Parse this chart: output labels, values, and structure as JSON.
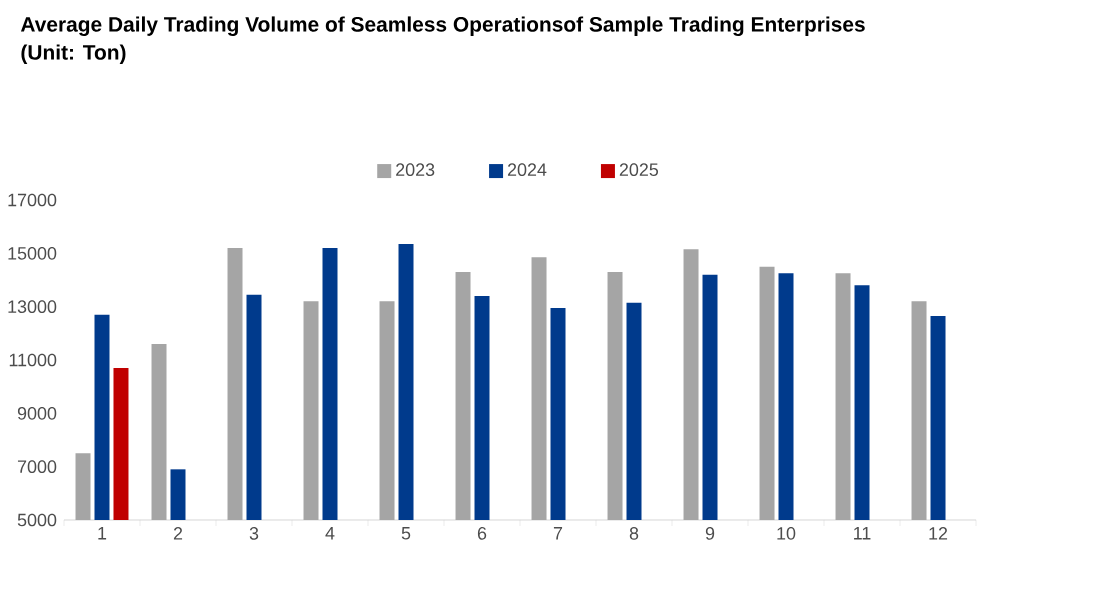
{
  "chart_data": {
    "type": "bar",
    "title": "Average Daily Trading Volume of Seamless Operationsof Sample Trading Enterprises",
    "subtitle": "(Unit: Ton)",
    "categories": [
      "1",
      "2",
      "3",
      "4",
      "5",
      "6",
      "7",
      "8",
      "9",
      "10",
      "11",
      "12"
    ],
    "series": [
      {
        "name": "2023",
        "color": "#a5a5a5",
        "values": [
          7500,
          11600,
          15200,
          13200,
          13200,
          14300,
          14850,
          14300,
          15150,
          14500,
          14250,
          13200
        ]
      },
      {
        "name": "2024",
        "color": "#003a8c",
        "values": [
          12700,
          6900,
          13450,
          15200,
          15350,
          13400,
          12950,
          13150,
          14200,
          14250,
          13800,
          12650
        ]
      },
      {
        "name": "2025",
        "color": "#c00000",
        "values": [
          10700,
          null,
          null,
          null,
          null,
          null,
          null,
          null,
          null,
          null,
          null,
          null
        ]
      }
    ],
    "ylim": [
      5000,
      17000
    ],
    "yticks": [
      5000,
      7000,
      9000,
      11000,
      13000,
      15000,
      17000
    ],
    "legend": "top"
  }
}
